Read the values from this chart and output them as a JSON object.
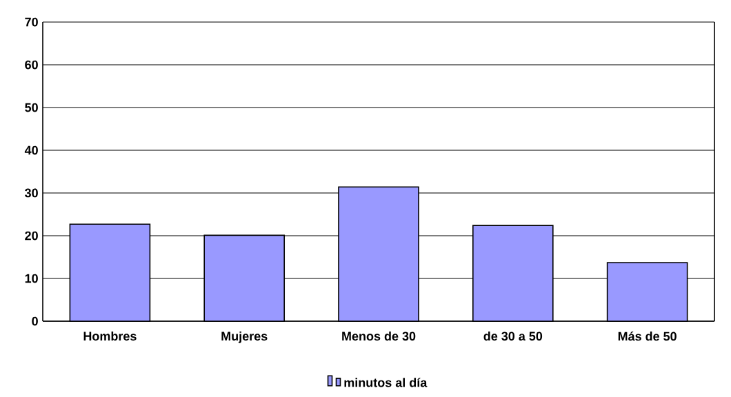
{
  "chart_data": {
    "type": "bar",
    "categories": [
      "Hombres",
      "Mujeres",
      "Menos de 30",
      "de 30 a 50",
      "Más de 50"
    ],
    "series": [
      {
        "name": "minutos al día",
        "color": "#9999ff",
        "values": [
          22.7,
          20.1,
          31.4,
          22.4,
          13.7
        ]
      }
    ],
    "ylim": [
      0,
      70
    ],
    "yticks": [
      0,
      10,
      20,
      30,
      40,
      50,
      60,
      70
    ],
    "grid": "y",
    "legend": "bottom"
  }
}
